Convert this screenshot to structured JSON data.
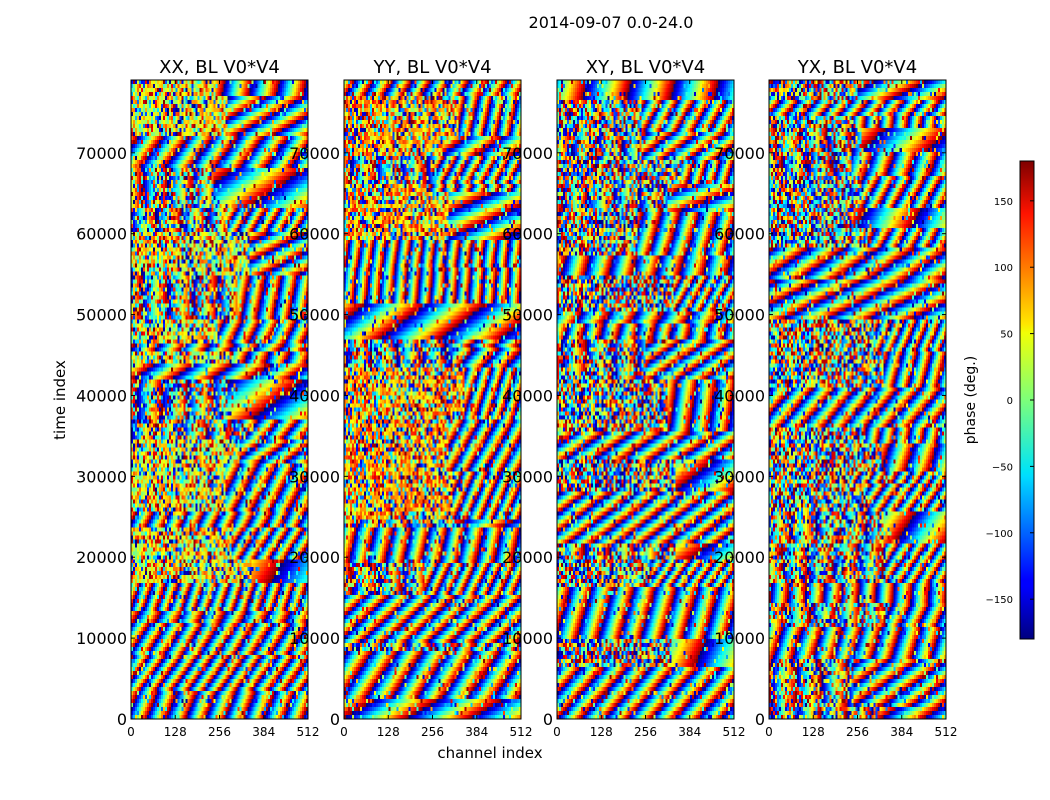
{
  "chart_data": {
    "type": "heatmap",
    "suptitle": "2014-09-07 0.0-24.0",
    "xlabel": "channel index",
    "ylabel": "time index",
    "xlim": [
      0,
      512
    ],
    "ylim": [
      0,
      79000
    ],
    "xticks": [
      "0",
      "128",
      "256",
      "384",
      "512"
    ],
    "xtick_values": [
      0,
      128,
      256,
      384,
      512
    ],
    "yticks": [
      "0",
      "10000",
      "20000",
      "30000",
      "40000",
      "50000",
      "60000",
      "70000"
    ],
    "ytick_values": [
      0,
      10000,
      20000,
      30000,
      40000,
      50000,
      60000,
      70000
    ],
    "panels": [
      {
        "title": "XX, BL V0*V4",
        "seed": 11,
        "bias": 0.62
      },
      {
        "title": "YY, BL V0*V4",
        "seed": 23,
        "bias": 0.72
      },
      {
        "title": "XY, BL V0*V4",
        "seed": 37,
        "bias": 0.0
      },
      {
        "title": "YX, BL V0*V4",
        "seed": 53,
        "bias": 0.0
      }
    ],
    "colorbar": {
      "label": "phase (deg.)",
      "range": [
        -180,
        180
      ],
      "ticks": [
        150,
        100,
        50,
        0,
        -50,
        -100,
        -150
      ],
      "tick_labels": [
        "150",
        "100",
        "50",
        "0",
        "−50",
        "−100",
        "−150"
      ],
      "colormap": "jet"
    }
  }
}
